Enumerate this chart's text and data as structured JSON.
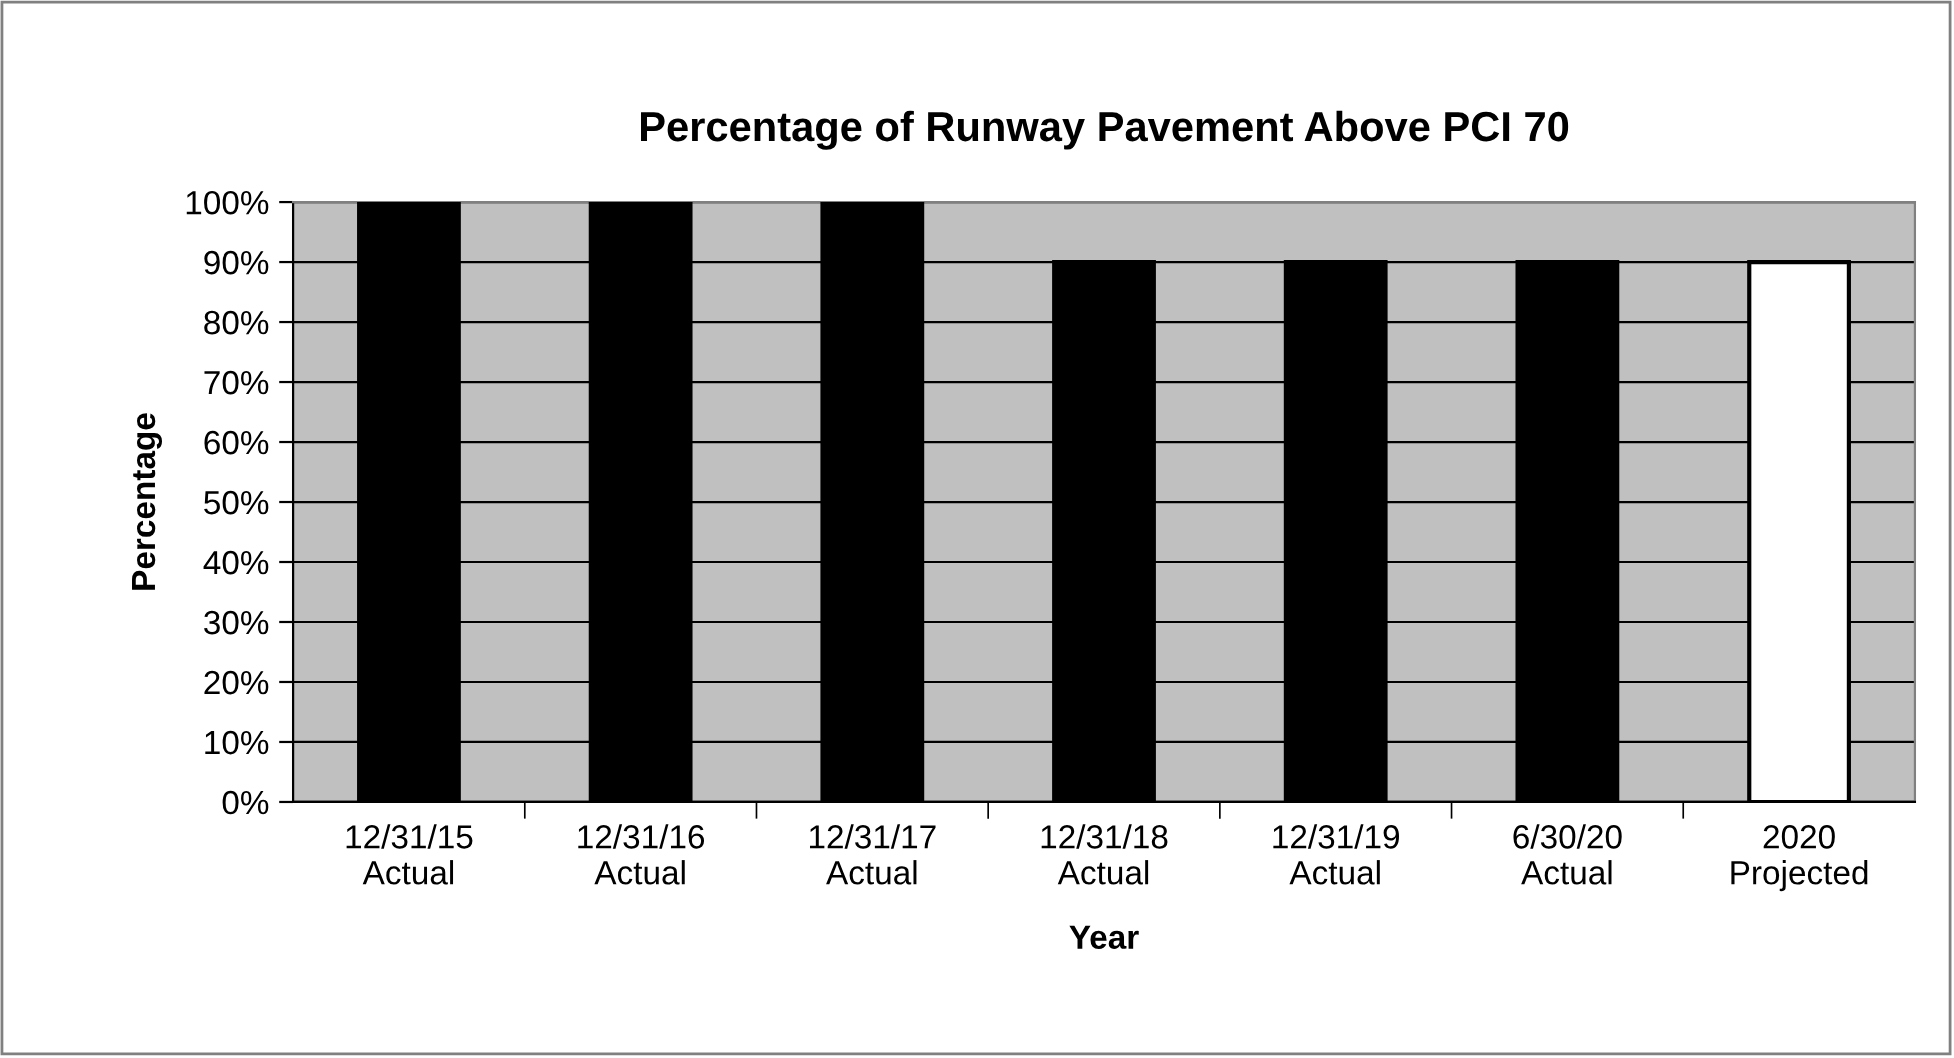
{
  "chart_data": {
    "type": "bar",
    "title": "Percentage of Runway Pavement Above PCI 70",
    "xlabel": "Year",
    "ylabel": "Percentage",
    "categories": [
      "12/31/15\nActual",
      "12/31/16\nActual",
      "12/31/17\nActual",
      "12/31/18\nActual",
      "12/31/19\nActual",
      "6/30/20\nActual",
      "2020\nProjected"
    ],
    "values": [
      100,
      100,
      100,
      90,
      90,
      90,
      90
    ],
    "colors": [
      "#000000",
      "#000000",
      "#000000",
      "#000000",
      "#000000",
      "#000000",
      "#ffffff"
    ],
    "ylim": [
      0,
      100
    ],
    "yticks": [
      {
        "value": 0,
        "label": "0%"
      },
      {
        "value": 10,
        "label": "10%"
      },
      {
        "value": 20,
        "label": "20%"
      },
      {
        "value": 30,
        "label": "30%"
      },
      {
        "value": 40,
        "label": "40%"
      },
      {
        "value": 50,
        "label": "50%"
      },
      {
        "value": 60,
        "label": "60%"
      },
      {
        "value": 70,
        "label": "70%"
      },
      {
        "value": 80,
        "label": "80%"
      },
      {
        "value": 90,
        "label": "90%"
      },
      {
        "value": 100,
        "label": "100%"
      }
    ],
    "grid": "y",
    "legend": false
  }
}
